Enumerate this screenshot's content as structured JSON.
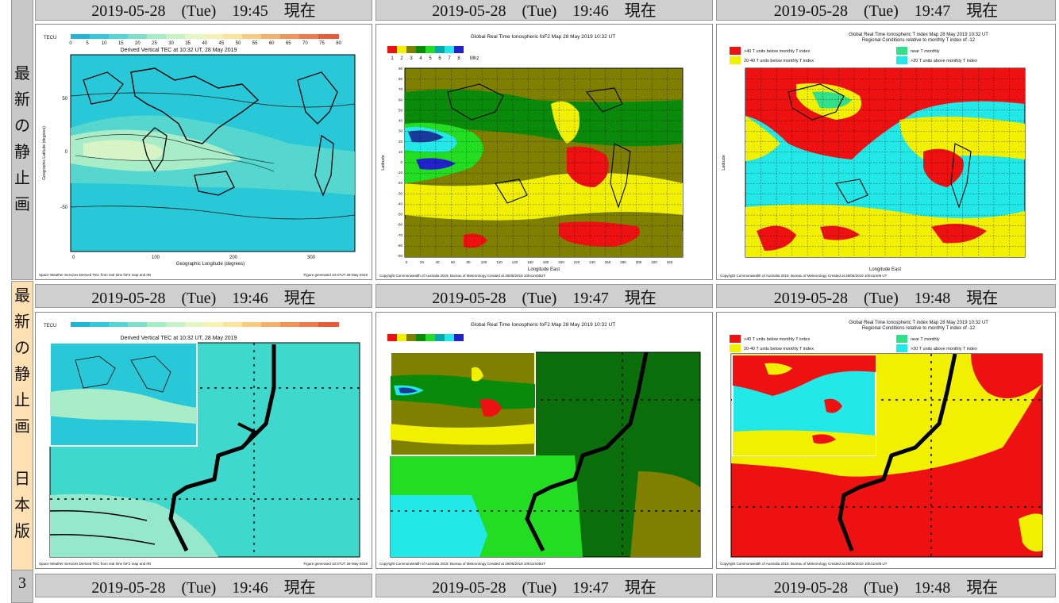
{
  "rows": [
    {
      "side_chars": [
        "最",
        "新",
        "の",
        "静",
        "止",
        "画"
      ],
      "headers": [
        "2019-05-28　(Tue)　19:45　現在",
        "2019-05-28　(Tue)　19:46　現在",
        "2019-05-28　(Tue)　19:47　現在"
      ]
    },
    {
      "side_chars": [
        "最",
        "新",
        "の",
        "静",
        "止",
        "画",
        "",
        "日",
        "本",
        "版"
      ],
      "headers": [
        "2019-05-28　(Tue)　19:46　現在",
        "2019-05-28　(Tue)　19:47　現在",
        "2019-05-28　(Tue)　19:48　現在"
      ]
    },
    {
      "side_chars": [
        "3"
      ],
      "headers": [
        "2019-05-28　(Tue)　19:46　現在",
        "2019-05-28　(Tue)　19:47　現在",
        "2019-05-28　(Tue)　19:48　現在"
      ]
    }
  ],
  "tec_map": {
    "unit": "TECU",
    "scale": [
      "0",
      "5",
      "10",
      "15",
      "20",
      "25",
      "30",
      "35",
      "40",
      "45",
      "50",
      "55",
      "60",
      "65",
      "70",
      "75",
      "80"
    ],
    "title": "Derived Vertical TEC at 10:32 UT, 28 May 2019",
    "ylabel": "Geographic Latitude (degrees)",
    "xlabel": "Geographic Longitude (degrees)",
    "xticks": [
      "0",
      "100",
      "200",
      "300"
    ],
    "yticks": [
      "50",
      "0",
      "-50"
    ],
    "footer_left": "Space Weather Services Derived TEC from real time foF2 map and IRI",
    "footer_right": "Figure generated 10:37UT 28-May-2019"
  },
  "fof2_map": {
    "title": "Global Real Time Ionospheric foF2 Map  28 May 2019 10:32 UT",
    "scale": [
      "1",
      "2",
      "3",
      "4",
      "5",
      "6",
      "7",
      "8"
    ],
    "unit": "Mhz",
    "ylabel": "Latitude",
    "xlabel": "Longitude East",
    "yticks": [
      "90",
      "80",
      "70",
      "60",
      "50",
      "40",
      "30",
      "20",
      "10",
      "0",
      "-10",
      "-20",
      "-30",
      "-40",
      "-50",
      "-60",
      "-70",
      "-80",
      "-90"
    ],
    "xticks": [
      "0",
      "20",
      "40",
      "60",
      "80",
      "100",
      "120",
      "140",
      "160",
      "180",
      "200",
      "220",
      "240",
      "260",
      "280",
      "300",
      "320",
      "340"
    ],
    "footer": "Copyright Commonwealth of Australia 2019, Bureau of Meteorology     Created at 28/05/2019 10h41m05UT"
  },
  "tindex_map": {
    "title": "Global Real Time Ionospheric T index Map 28 May 2019 10:32 UT",
    "subtitle": "Regional Conditions relative to monthly T index of -12",
    "legend": [
      ">40 T units below monthly T index",
      "near T monthly",
      "20-40 T units below monthly T index",
      ">20 T units above monthly T index"
    ],
    "ylabel": "Latitude",
    "xlabel": "Longitude East",
    "footer": "Copyright Commonwealth of Australia 2019, Bureau of Meteorology     Created at 28/05/2019 10h41m08 UT"
  },
  "colors": {
    "header_bg": "#cfcfcf",
    "side_row1": "#c8c8c8",
    "side_row2": "#ffe0b3",
    "tec_cyan": "#28c8d8",
    "fof2_olive": "#808000",
    "fof2_green": "#0a8a0a",
    "fof2_lime": "#22dd22",
    "fof2_yellow": "#f0f000",
    "fof2_red": "#ee1111",
    "tindex_red": "#ee1111",
    "tindex_yellow": "#f0f000",
    "tindex_cyan": "#22e8e8",
    "tindex_green": "#33e08a"
  }
}
